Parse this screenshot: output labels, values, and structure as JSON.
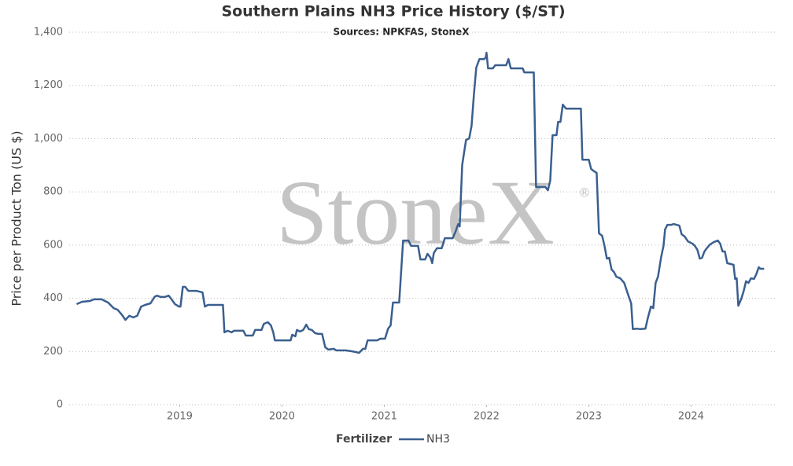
{
  "chart_data": {
    "type": "line",
    "title": "Southern Plains NH3 Price History ($/ST)",
    "subtitle": "Sources: NPKFAS, StoneX",
    "y_label": "Price per Product Ton (US $)",
    "watermark": "StoneX",
    "watermark_symbol": "®",
    "legend_title": "Fertilizer",
    "legend_position": "bottom",
    "grid": true,
    "xlim": [
      2017.92,
      2024.82
    ],
    "xticks": [
      2019,
      2020,
      2021,
      2022,
      2023,
      2024
    ],
    "ylim": [
      0,
      1400
    ],
    "yticks": [
      0,
      200,
      400,
      600,
      800,
      {
        "value": 1000,
        "label": "1,000"
      },
      {
        "value": 1200,
        "label": "1,200"
      },
      {
        "value": 1400,
        "label": "1,400"
      }
    ],
    "x": [
      2017.992,
      2018.046,
      2018.123,
      2018.162,
      2018.238,
      2018.3,
      2018.354,
      2018.392,
      2018.431,
      2018.469,
      2018.508,
      2018.546,
      2018.585,
      2018.623,
      2018.662,
      2018.715,
      2018.754,
      2018.777,
      2018.815,
      2018.854,
      2018.892,
      2018.915,
      2018.954,
      2018.992,
      2019.008,
      2019.031,
      2019.054,
      2019.085,
      2019.162,
      2019.223,
      2019.246,
      2019.277,
      2019.315,
      2019.423,
      2019.438,
      2019.469,
      2019.508,
      2019.531,
      2019.623,
      2019.646,
      2019.715,
      2019.738,
      2019.8,
      2019.823,
      2019.862,
      2019.892,
      2019.915,
      2019.931,
      2020.085,
      2020.1,
      2020.131,
      2020.146,
      2020.177,
      2020.208,
      2020.238,
      2020.262,
      2020.292,
      2020.323,
      2020.354,
      2020.392,
      2020.423,
      2020.454,
      2020.508,
      2020.531,
      2020.623,
      2020.677,
      2020.723,
      2020.754,
      2020.792,
      2020.815,
      2020.838,
      2020.931,
      2020.962,
      2021.008,
      2021.038,
      2021.062,
      2021.085,
      2021.146,
      2021.185,
      2021.238,
      2021.262,
      2021.331,
      2021.354,
      2021.4,
      2021.423,
      2021.454,
      2021.469,
      2021.485,
      2021.515,
      2021.562,
      2021.592,
      2021.669,
      2021.7,
      2021.723,
      2021.738,
      2021.762,
      2021.8,
      2021.831,
      2021.854,
      2021.877,
      2021.9,
      2021.931,
      2021.977,
      2021.992,
      2022.0,
      2022.015,
      2022.062,
      2022.085,
      2022.192,
      2022.215,
      2022.238,
      2022.354,
      2022.369,
      2022.462,
      2022.485,
      2022.577,
      2022.6,
      2022.623,
      2022.646,
      2022.685,
      2022.7,
      2022.723,
      2022.746,
      2022.777,
      2022.923,
      2022.938,
      2023.0,
      2023.023,
      2023.054,
      2023.077,
      2023.1,
      2023.131,
      2023.154,
      2023.177,
      2023.2,
      2023.223,
      2023.246,
      2023.269,
      2023.308,
      2023.346,
      2023.385,
      2023.415,
      2023.431,
      2023.469,
      2023.5,
      2023.554,
      2023.577,
      2023.608,
      2023.631,
      2023.654,
      2023.677,
      2023.708,
      2023.731,
      2023.746,
      2023.769,
      2023.808,
      2023.831,
      2023.885,
      2023.908,
      2023.938,
      2023.969,
      2024.015,
      2024.038,
      2024.062,
      2024.085,
      2024.108,
      2024.131,
      2024.154,
      2024.185,
      2024.223,
      2024.262,
      2024.285,
      2024.308,
      2024.331,
      2024.354,
      2024.385,
      2024.415,
      2024.431,
      2024.446,
      2024.462,
      2024.492,
      2024.515,
      2024.538,
      2024.562,
      2024.585,
      2024.615,
      2024.638,
      2024.662,
      2024.677,
      2024.715
    ],
    "series": [
      {
        "name": "NH3",
        "color": "#3a5f8f",
        "values": [
          378,
          387,
          390,
          396,
          396,
          384,
          363,
          357,
          340,
          319,
          334,
          328,
          334,
          369,
          375,
          381,
          405,
          410,
          405,
          405,
          410,
          399,
          378,
          369,
          369,
          443,
          443,
          428,
          428,
          422,
          369,
          375,
          375,
          375,
          272,
          278,
          272,
          278,
          278,
          260,
          260,
          281,
          281,
          304,
          310,
          298,
          272,
          242,
          242,
          263,
          257,
          281,
          275,
          281,
          301,
          284,
          281,
          269,
          266,
          266,
          216,
          207,
          210,
          204,
          204,
          201,
          198,
          195,
          210,
          210,
          242,
          242,
          248,
          248,
          286,
          298,
          384,
          384,
          617,
          617,
          597,
          597,
          546,
          546,
          567,
          552,
          532,
          570,
          588,
          588,
          626,
          626,
          653,
          679,
          670,
          901,
          995,
          1001,
          1048,
          1166,
          1267,
          1299,
          1299,
          1305,
          1323,
          1264,
          1264,
          1276,
          1276,
          1299,
          1264,
          1264,
          1249,
          1249,
          818,
          818,
          806,
          842,
          1013,
          1013,
          1063,
          1063,
          1128,
          1113,
          1113,
          921,
          921,
          886,
          877,
          871,
          644,
          635,
          597,
          549,
          552,
          508,
          499,
          481,
          475,
          458,
          413,
          381,
          284,
          286,
          284,
          286,
          325,
          369,
          363,
          458,
          481,
          555,
          597,
          659,
          676,
          676,
          679,
          673,
          641,
          632,
          614,
          605,
          597,
          582,
          549,
          552,
          576,
          588,
          602,
          611,
          617,
          605,
          576,
          576,
          532,
          529,
          526,
          473,
          475,
          372,
          399,
          428,
          464,
          458,
          475,
          473,
          490,
          517,
          511,
          511
        ]
      }
    ]
  }
}
